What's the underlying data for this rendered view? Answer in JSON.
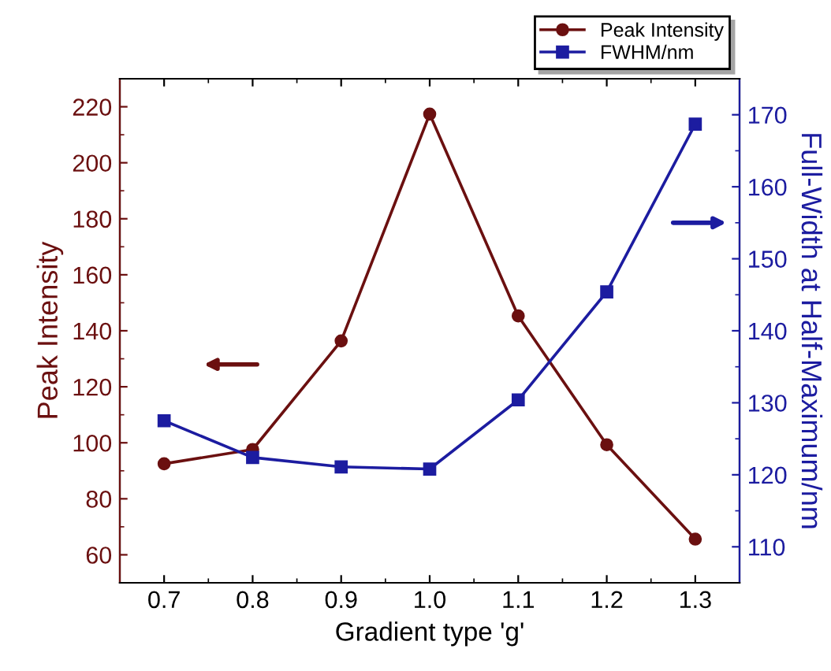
{
  "chart_data": {
    "type": "line",
    "xlabel": "Gradient type 'g'",
    "ylabel": "Peak Intensity",
    "y2label": "Full-Width at Half-Maximum/nm",
    "x": [
      0.7,
      0.8,
      0.9,
      1.0,
      1.1,
      1.2,
      1.3
    ],
    "series": [
      {
        "name": "Peak Intensity",
        "color": "#6b1010",
        "marker": "circle",
        "values": [
          92.5,
          97.6,
          136.4,
          217.4,
          145.3,
          99.3,
          65.6
        ]
      },
      {
        "name": "FWHM/nm",
        "color": "#1c1ca0",
        "marker": "square",
        "axis": "y2",
        "values": [
          127.5,
          122.4,
          121.1,
          120.8,
          130.4,
          145.4,
          168.7
        ]
      }
    ],
    "xlim": [
      0.65,
      1.35
    ],
    "xticks": [
      0.7,
      0.8,
      0.9,
      {
        "value": 1,
        "label": "1.0"
      },
      1.1,
      1.2,
      1.3
    ],
    "ylim": [
      50,
      230
    ],
    "yticks": [
      60,
      80,
      100,
      120,
      140,
      160,
      180,
      200,
      220
    ],
    "y2lim": [
      105,
      175
    ],
    "y2ticks": [
      110,
      120,
      130,
      140,
      150,
      160,
      170
    ],
    "legend": "top right",
    "grid": false,
    "line_style": "solid"
  }
}
